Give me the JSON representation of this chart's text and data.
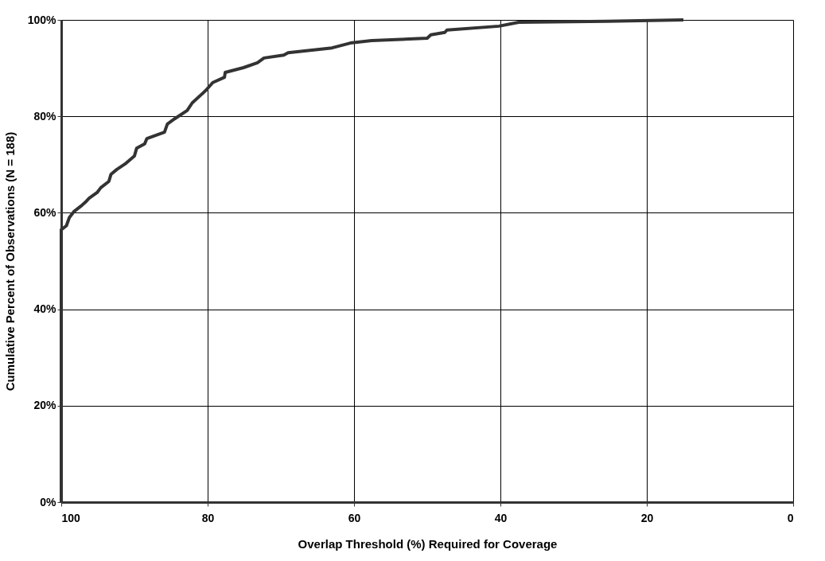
{
  "chart_data": {
    "type": "line",
    "xlabel": "Overlap Threshold (%) Required for Coverage",
    "ylabel": "Cumulative Percent of Observations (N = 188)",
    "xlim": [
      100,
      0
    ],
    "ylim": [
      0,
      100
    ],
    "xticks": [
      100,
      80,
      60,
      40,
      20,
      0
    ],
    "yticks": [
      {
        "value": 0,
        "label": "0%"
      },
      {
        "value": 20,
        "label": "20%"
      },
      {
        "value": 40,
        "label": "40%"
      },
      {
        "value": 60,
        "label": "60%"
      },
      {
        "value": 80,
        "label": "80%"
      },
      {
        "value": 100,
        "label": "100%"
      }
    ],
    "grid": true,
    "line_style": "solid",
    "marker": "none",
    "series": [
      {
        "color": "#333333",
        "x": [
          100,
          100,
          99.3,
          98.9,
          98.3,
          97.3,
          96.7,
          96.2,
          95.1,
          94.6,
          93.5,
          93.2,
          92.4,
          91.3,
          90,
          89.7,
          88.6,
          88.3,
          85.9,
          85.5,
          84.5,
          82.8,
          82.1,
          80.3,
          79.3,
          77.7,
          77.6,
          75.1,
          73.2,
          72.3,
          69.6,
          69,
          63,
          60.5,
          57.6,
          50,
          49.5,
          47.6,
          47.3,
          40.2,
          37.5,
          25.5,
          15
        ],
        "values": [
          0,
          56.5,
          57.3,
          59,
          60.2,
          61.4,
          62.2,
          63,
          64.2,
          65.2,
          66.5,
          68,
          69,
          70.1,
          71.8,
          73.4,
          74.3,
          75.4,
          76.7,
          78.4,
          79.5,
          81.2,
          82.8,
          85.3,
          87,
          88.1,
          89.1,
          90.1,
          91.1,
          92.1,
          92.7,
          93.2,
          94.2,
          95.2,
          95.7,
          96.2,
          96.9,
          97.4,
          97.9,
          98.7,
          99.5,
          99.7,
          100
        ]
      }
    ]
  }
}
